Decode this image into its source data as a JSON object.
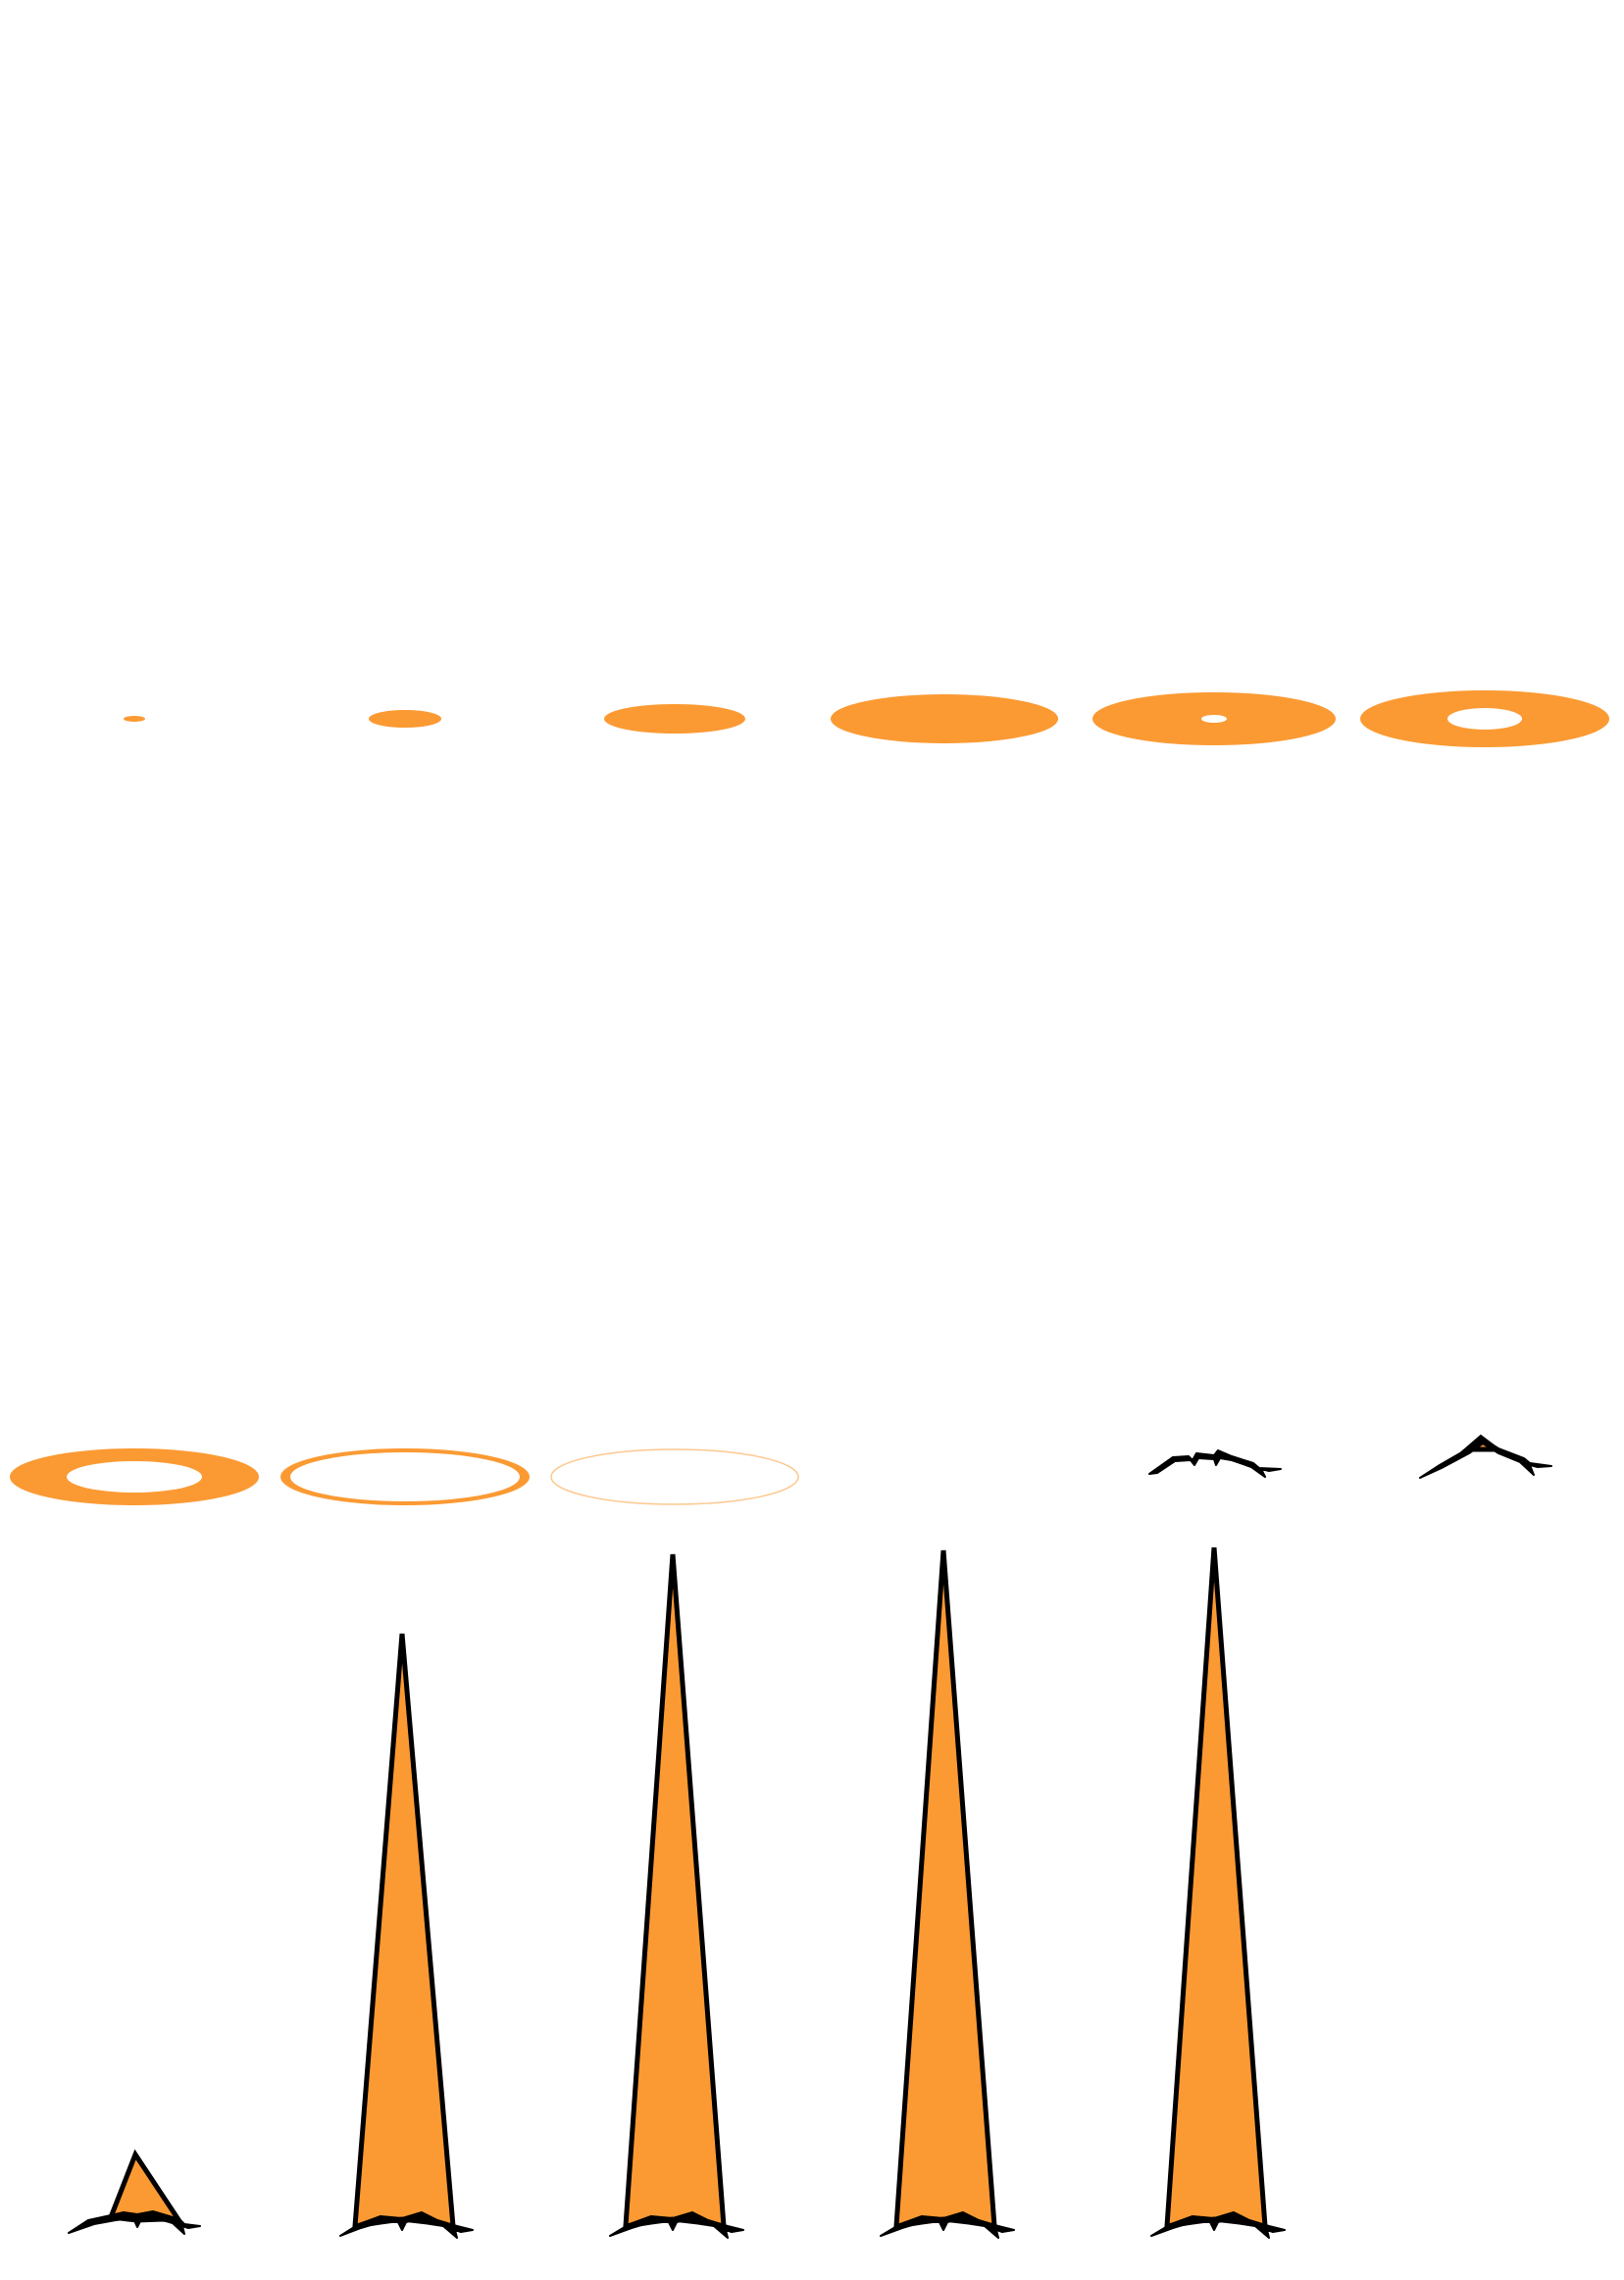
{
  "colors": {
    "fill": "#FB9A33",
    "outline": "#000000",
    "background": "#FFFFFF"
  },
  "rows": [
    {
      "name": "expanding-ring-row",
      "frames": [
        {
          "kind": "disc"
        },
        {
          "kind": "disc"
        },
        {
          "kind": "disc"
        },
        {
          "kind": "disc"
        },
        {
          "kind": "ring"
        },
        {
          "kind": "ring"
        }
      ]
    },
    {
      "name": "fading-ring-row",
      "frames": [
        {
          "kind": "ring"
        },
        {
          "kind": "ring-outline"
        },
        {
          "kind": "ring-outline-faded"
        },
        {
          "kind": "empty"
        },
        {
          "kind": "debris"
        },
        {
          "kind": "debris-with-spike"
        }
      ]
    },
    {
      "name": "spike-row",
      "frames": [
        {
          "kind": "spike"
        },
        {
          "kind": "spike"
        },
        {
          "kind": "spike"
        },
        {
          "kind": "spike"
        },
        {
          "kind": "spike"
        }
      ]
    }
  ]
}
